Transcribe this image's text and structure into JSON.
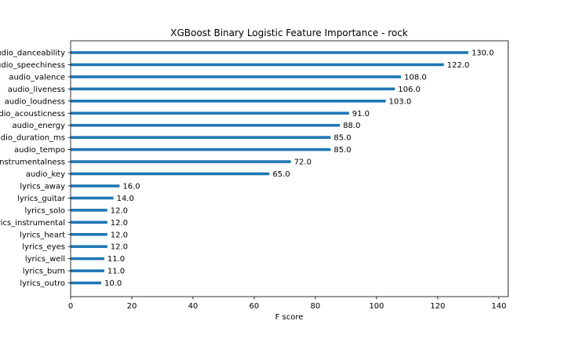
{
  "chart_data": {
    "type": "bar",
    "orientation": "horizontal",
    "title": "XGBoost Binary Logistic Feature Importance - rock",
    "xlabel": "F score",
    "ylabel": "",
    "xlim": [
      0,
      143
    ],
    "xticks": [
      0,
      20,
      40,
      60,
      80,
      100,
      120,
      140
    ],
    "grid": false,
    "bar_color": "#1f77b4",
    "categories": [
      "audio_danceability",
      "audio_speechiness",
      "audio_valence",
      "audio_liveness",
      "audio_loudness",
      "audio_acousticness",
      "audio_energy",
      "audio_duration_ms",
      "audio_tempo",
      "audio_instrumentalness",
      "audio_key",
      "lyrics_away",
      "lyrics_guitar",
      "lyrics_solo",
      "lyrics_instrumental",
      "lyrics_heart",
      "lyrics_eyes",
      "lyrics_well",
      "lyrics_burn",
      "lyrics_outro"
    ],
    "values": [
      130,
      122,
      108,
      106,
      103,
      91,
      88,
      85,
      85,
      72,
      65,
      16,
      14,
      12,
      12,
      12,
      12,
      11,
      11,
      10
    ],
    "data_labels": [
      "130.0",
      "122.0",
      "108.0",
      "106.0",
      "103.0",
      "91.0",
      "88.0",
      "85.0",
      "85.0",
      "72.0",
      "65.0",
      "16.0",
      "14.0",
      "12.0",
      "12.0",
      "12.0",
      "12.0",
      "11.0",
      "11.0",
      "10.0"
    ]
  }
}
